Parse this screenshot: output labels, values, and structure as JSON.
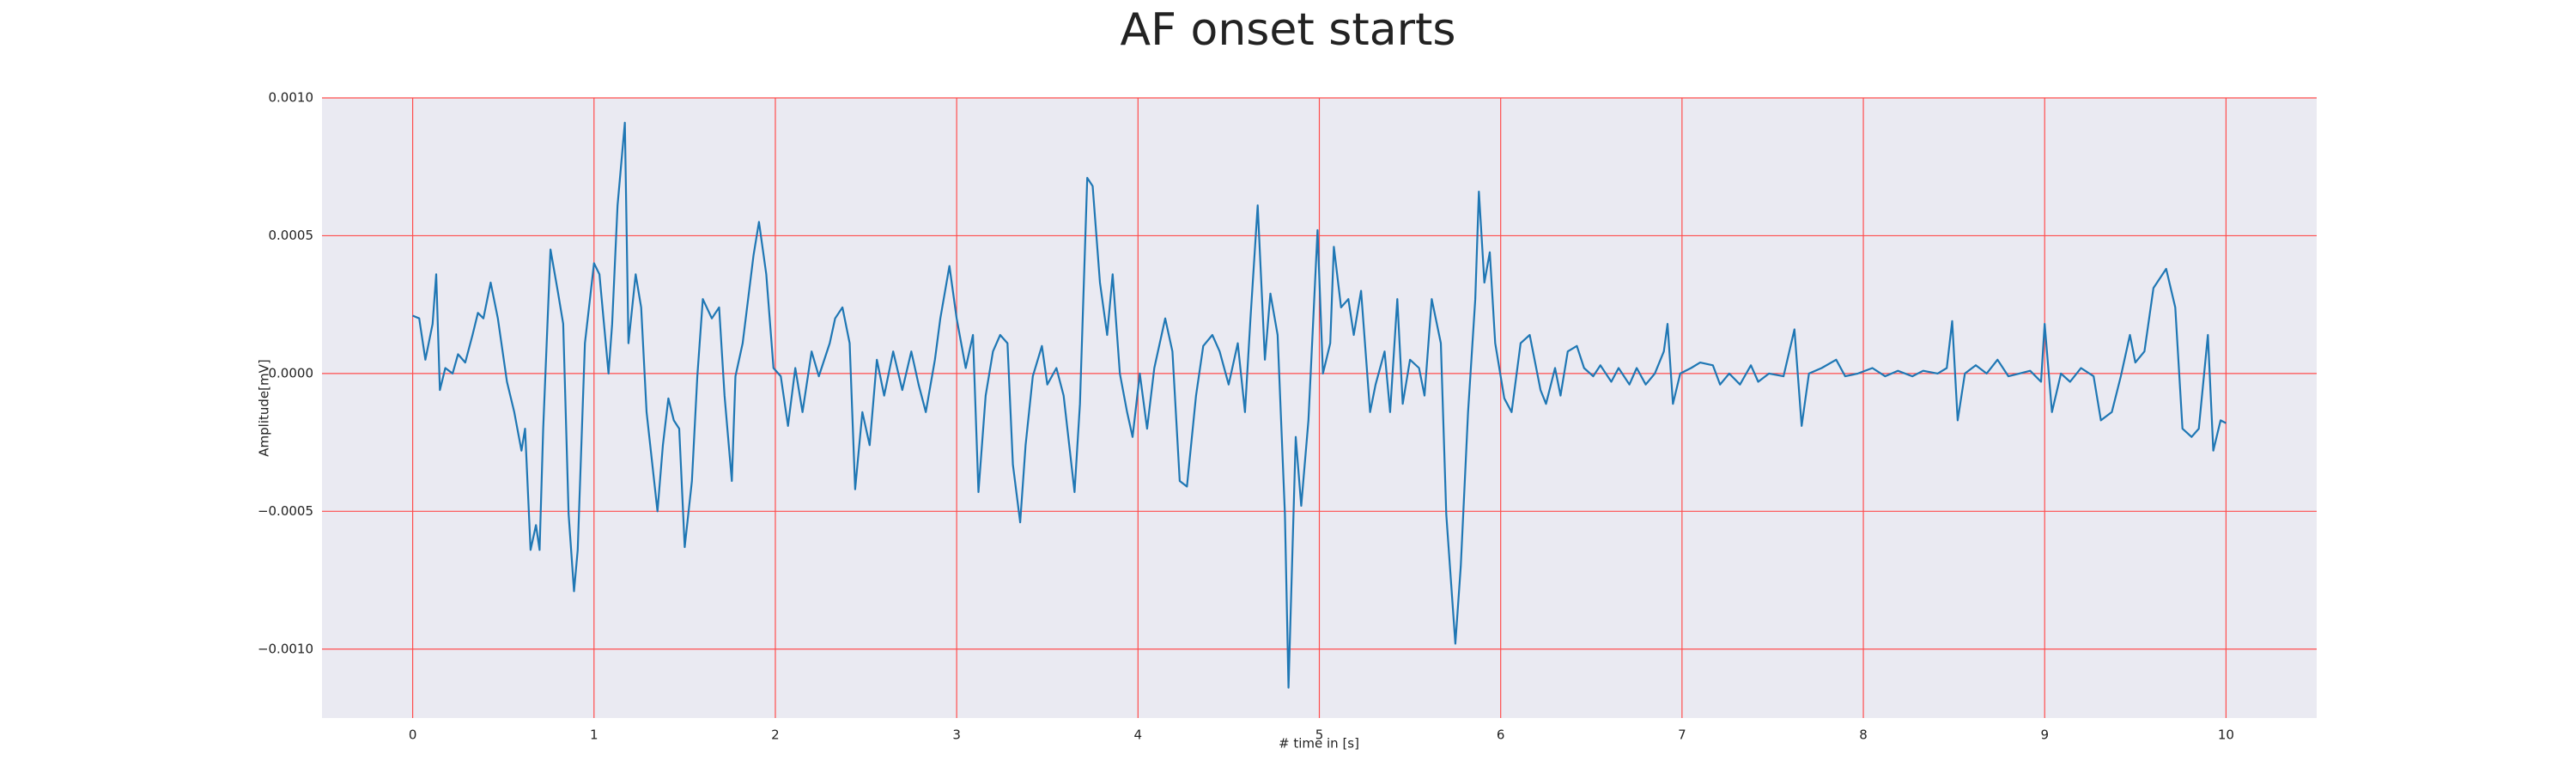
{
  "chart_data": {
    "type": "line",
    "title": "AF onset starts",
    "xlabel": "# time in [s]",
    "ylabel": "Amplitude[mV]",
    "xlim": [
      -0.5,
      10.5
    ],
    "xticks": [
      0,
      1,
      2,
      3,
      4,
      5,
      6,
      7,
      8,
      9,
      10
    ],
    "ylim": [
      -0.00125,
      0.001
    ],
    "yticks": [
      {
        "value": -0.001,
        "label": "−0.0010"
      },
      {
        "value": -0.0005,
        "label": "−0.0005"
      },
      {
        "value": 0,
        "label": "0.0000"
      },
      {
        "value": 0.0005,
        "label": "0.0005"
      },
      {
        "value": 0.001,
        "label": "0.0010"
      }
    ],
    "grid": true,
    "grid_color": "#ff4d4d",
    "background": "#eaeaf2",
    "x": [
      0,
      0.036,
      0.07,
      0.11,
      0.13,
      0.15,
      0.18,
      0.22,
      0.25,
      0.29,
      0.33,
      0.36,
      0.39,
      0.43,
      0.47,
      0.52,
      0.56,
      0.6,
      0.62,
      0.65,
      0.68,
      0.7,
      0.72,
      0.76,
      0.8,
      0.83,
      0.86,
      0.89,
      0.91,
      0.95,
      1.0,
      1.03,
      1.08,
      1.1,
      1.13,
      1.17,
      1.19,
      1.23,
      1.26,
      1.29,
      1.35,
      1.38,
      1.41,
      1.44,
      1.47,
      1.5,
      1.54,
      1.57,
      1.6,
      1.65,
      1.69,
      1.72,
      1.76,
      1.78,
      1.82,
      1.88,
      1.91,
      1.95,
      1.99,
      2.03,
      2.07,
      2.11,
      2.15,
      2.2,
      2.24,
      2.3,
      2.33,
      2.37,
      2.41,
      2.44,
      2.48,
      2.52,
      2.56,
      2.6,
      2.65,
      2.7,
      2.75,
      2.79,
      2.83,
      2.88,
      2.91,
      2.96,
      3.0,
      3.05,
      3.09,
      3.12,
      3.16,
      3.2,
      3.24,
      3.28,
      3.31,
      3.35,
      3.38,
      3.42,
      3.47,
      3.5,
      3.55,
      3.59,
      3.65,
      3.68,
      3.72,
      3.75,
      3.79,
      3.83,
      3.86,
      3.9,
      3.94,
      3.97,
      4.01,
      4.05,
      4.09,
      4.15,
      4.19,
      4.23,
      4.27,
      4.32,
      4.36,
      4.41,
      4.45,
      4.5,
      4.55,
      4.59,
      4.62,
      4.66,
      4.7,
      4.73,
      4.77,
      4.81,
      4.83,
      4.87,
      4.9,
      4.94,
      4.99,
      5.02,
      5.06,
      5.08,
      5.12,
      5.16,
      5.19,
      5.23,
      5.28,
      5.31,
      5.36,
      5.39,
      5.43,
      5.46,
      5.5,
      5.55,
      5.58,
      5.62,
      5.67,
      5.7,
      5.75,
      5.78,
      5.82,
      5.86,
      5.88,
      5.91,
      5.94,
      5.97,
      6.02,
      6.06,
      6.11,
      6.16,
      6.22,
      6.25,
      6.3,
      6.33,
      6.37,
      6.42,
      6.46,
      6.51,
      6.55,
      6.61,
      6.65,
      6.71,
      6.75,
      6.8,
      6.85,
      6.9,
      6.92,
      6.95,
      6.99,
      7.05,
      7.1,
      7.17,
      7.21,
      7.26,
      7.32,
      7.38,
      7.42,
      7.48,
      7.56,
      7.62,
      7.66,
      7.7,
      7.77,
      7.85,
      7.9,
      7.97,
      8.05,
      8.12,
      8.19,
      8.27,
      8.33,
      8.41,
      8.46,
      8.49,
      8.52,
      8.56,
      8.62,
      8.68,
      8.74,
      8.8,
      8.86,
      8.92,
      8.98,
      9.0,
      9.04,
      9.09,
      9.14,
      9.2,
      9.27,
      9.31,
      9.37,
      9.42,
      9.47,
      9.5,
      9.55,
      9.6,
      9.67,
      9.72,
      9.76,
      9.81,
      9.85,
      9.9,
      9.93,
      9.97,
      10.0
    ],
    "series": [
      {
        "name": "signal",
        "color": "#1f77b4",
        "values": [
          0.00021,
          0.0002,
          5e-05,
          0.00018,
          0.00036,
          -6e-05,
          2e-05,
          0.0,
          7e-05,
          4e-05,
          0.00014,
          0.00022,
          0.0002,
          0.00033,
          0.0002,
          -3e-05,
          -0.00014,
          -0.00028,
          -0.0002,
          -0.00064,
          -0.00055,
          -0.00064,
          -0.0002,
          0.00045,
          0.0003,
          0.00018,
          -0.00051,
          -0.00079,
          -0.00064,
          0.00011,
          0.0004,
          0.00036,
          0.0,
          0.00018,
          0.00061,
          0.00091,
          0.00011,
          0.00036,
          0.00024,
          -0.00014,
          -0.0005,
          -0.00026,
          -9e-05,
          -0.00017,
          -0.0002,
          -0.00063,
          -0.00039,
          -1e-05,
          0.00027,
          0.0002,
          0.00024,
          -8e-05,
          -0.00039,
          -1e-05,
          0.00011,
          0.00043,
          0.00055,
          0.00036,
          2e-05,
          -1e-05,
          -0.00019,
          2e-05,
          -0.00014,
          8e-05,
          -1e-05,
          0.00011,
          0.0002,
          0.00024,
          0.00011,
          -0.00042,
          -0.00014,
          -0.00026,
          5e-05,
          -8e-05,
          8e-05,
          -6e-05,
          8e-05,
          -4e-05,
          -0.00014,
          5e-05,
          0.0002,
          0.00039,
          0.0002,
          2e-05,
          0.00014,
          -0.00043,
          -8e-05,
          8e-05,
          0.00014,
          0.00011,
          -0.00033,
          -0.00054,
          -0.00026,
          -1e-05,
          0.0001,
          -4e-05,
          2e-05,
          -8e-05,
          -0.00043,
          -0.00011,
          0.00071,
          0.00068,
          0.00033,
          0.00014,
          0.00036,
          0.0,
          -0.00014,
          -0.00023,
          0.0,
          -0.0002,
          2e-05,
          0.0002,
          8e-05,
          -0.00039,
          -0.00041,
          -8e-05,
          0.0001,
          0.00014,
          8e-05,
          -4e-05,
          0.00011,
          -0.00014,
          0.0002,
          0.00061,
          5e-05,
          0.00029,
          0.00014,
          -0.00051,
          -0.00114,
          -0.00023,
          -0.00048,
          -0.00017,
          0.00052,
          0.0,
          0.00011,
          0.00046,
          0.00024,
          0.00027,
          0.00014,
          0.0003,
          -0.00014,
          -4e-05,
          8e-05,
          -0.00014,
          0.00027,
          -0.00011,
          5e-05,
          2e-05,
          -8e-05,
          0.00027,
          0.00011,
          -0.00051,
          -0.00098,
          -0.0007,
          -0.00014,
          0.00027,
          0.00066,
          0.00033,
          0.00044,
          0.00011,
          -9e-05,
          -0.00014,
          0.00011,
          0.00014,
          -6e-05,
          -0.00011,
          2e-05,
          -8e-05,
          8e-05,
          0.0001,
          2e-05,
          -1e-05,
          3e-05,
          -3e-05,
          2e-05,
          -4e-05,
          2e-05,
          -4e-05,
          0.0,
          8e-05,
          0.00018,
          -0.00011,
          0.0,
          2e-05,
          4e-05,
          3e-05,
          -4e-05,
          0.0,
          -4e-05,
          3e-05,
          -3e-05,
          0.0,
          -1e-05,
          0.00016,
          -0.00019,
          0.0,
          2e-05,
          5e-05,
          -1e-05,
          0.0,
          2e-05,
          -1e-05,
          1e-05,
          -1e-05,
          1e-05,
          0.0,
          2e-05,
          0.00019,
          -0.00017,
          0.0,
          3e-05,
          0.0,
          5e-05,
          -1e-05,
          0.0,
          1e-05,
          -3e-05,
          0.00018,
          -0.00014,
          0.0,
          -3e-05,
          2e-05,
          -1e-05,
          -0.00017,
          -0.00014,
          -1e-05,
          0.00014,
          4e-05,
          8e-05,
          0.00031,
          0.00038,
          0.00024,
          -0.0002,
          -0.00023,
          -0.0002,
          0.00014,
          -0.00028,
          -0.00017,
          -0.00018
        ]
      }
    ]
  }
}
